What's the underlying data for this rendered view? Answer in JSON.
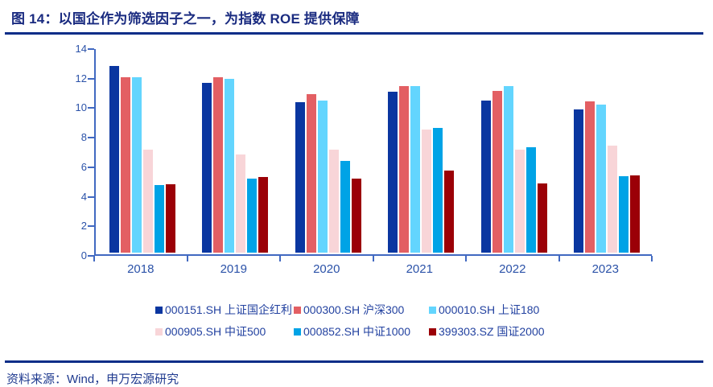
{
  "header": {
    "title": "图 14：以国企作为筛选因子之一，为指数 ROE 提供保障"
  },
  "chart_data": {
    "type": "bar",
    "title": "",
    "xlabel": "",
    "ylabel": "",
    "categories": [
      "2018",
      "2019",
      "2020",
      "2021",
      "2022",
      "2023"
    ],
    "series": [
      {
        "name": "000151.SH 上证国企红利",
        "color": "#0a36a0",
        "values": [
          12.65,
          11.5,
          10.2,
          10.9,
          10.3,
          9.7
        ]
      },
      {
        "name": "000300.SH 沪深300",
        "color": "#e35f63",
        "values": [
          11.85,
          11.9,
          10.75,
          11.25,
          10.95,
          10.25
        ]
      },
      {
        "name": "000010.SH 上证180",
        "color": "#63d5fe",
        "values": [
          11.85,
          11.75,
          10.3,
          11.25,
          11.25,
          10.05
        ]
      },
      {
        "name": "000905.SH 中证500",
        "color": "#f8d5d8",
        "values": [
          7.0,
          6.65,
          7.0,
          8.35,
          6.95,
          7.25
        ]
      },
      {
        "name": "000852.SH 中证1000",
        "color": "#00a3e6",
        "values": [
          4.55,
          5.0,
          6.2,
          8.45,
          7.15,
          5.2
        ]
      },
      {
        "name": "399303.SZ 国证2000",
        "color": "#9b0007",
        "values": [
          4.65,
          5.1,
          5.0,
          5.55,
          4.7,
          5.25
        ]
      }
    ],
    "ylim": [
      0,
      14
    ],
    "ytick_step": 2,
    "yticks": [
      "0",
      "2",
      "4",
      "6",
      "8",
      "10",
      "12",
      "14"
    ],
    "grid": false,
    "legend_position": "bottom"
  },
  "footer": {
    "source": "资料来源：Wind，申万宏源研究"
  },
  "colors": {
    "title_navy": "#1a2b80",
    "rule_navy": "#0b2d88",
    "axis_line": "#4169c1",
    "axis_text": "#2b52a8",
    "legend_text": "#2342a0"
  }
}
